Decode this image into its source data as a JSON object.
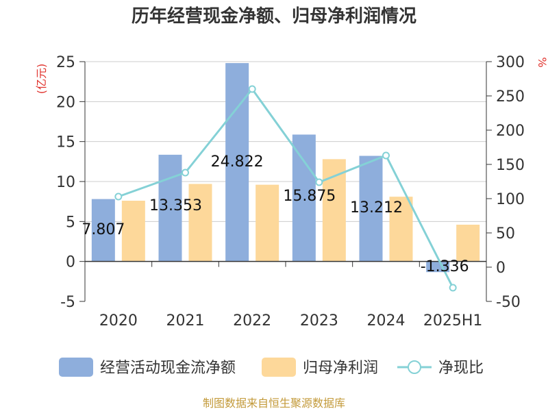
{
  "title": "历年经营现金净额、归母净利润情况",
  "left_unit": "(亿元)",
  "right_unit": "%",
  "source": "制图数据来自恒生聚源数据库",
  "colors": {
    "bar1": "#8eaedc",
    "bar2": "#fdd89a",
    "line": "#84d1d6",
    "axis": "#333333",
    "grid": "#cccccc"
  },
  "chart_data": {
    "type": "bar",
    "categories": [
      "2020",
      "2021",
      "2022",
      "2023",
      "2024",
      "2025H1"
    ],
    "series": [
      {
        "name": "经营活动现金流净额",
        "type": "bar",
        "axis": "left",
        "values": [
          7.807,
          13.353,
          24.822,
          15.875,
          13.212,
          -1.336
        ],
        "labels": [
          "7.807",
          "13.353",
          "24.822",
          "15.875",
          "13.212",
          "-1.336"
        ]
      },
      {
        "name": "归母净利润",
        "type": "bar",
        "axis": "left",
        "values": [
          7.6,
          9.7,
          9.6,
          12.8,
          8.1,
          4.6
        ]
      },
      {
        "name": "净现比",
        "type": "line",
        "axis": "right",
        "values": [
          103,
          138,
          260,
          124,
          163,
          -30
        ]
      }
    ],
    "ylim_left": [
      -5,
      25
    ],
    "yticks_left": [
      "-5",
      "0",
      "5",
      "10",
      "15",
      "20",
      "25"
    ],
    "ylim_right": [
      -50,
      300
    ],
    "yticks_right": [
      "-50",
      "0",
      "50",
      "100",
      "150",
      "200",
      "250",
      "300"
    ],
    "grid": true,
    "legend_position": "bottom"
  }
}
